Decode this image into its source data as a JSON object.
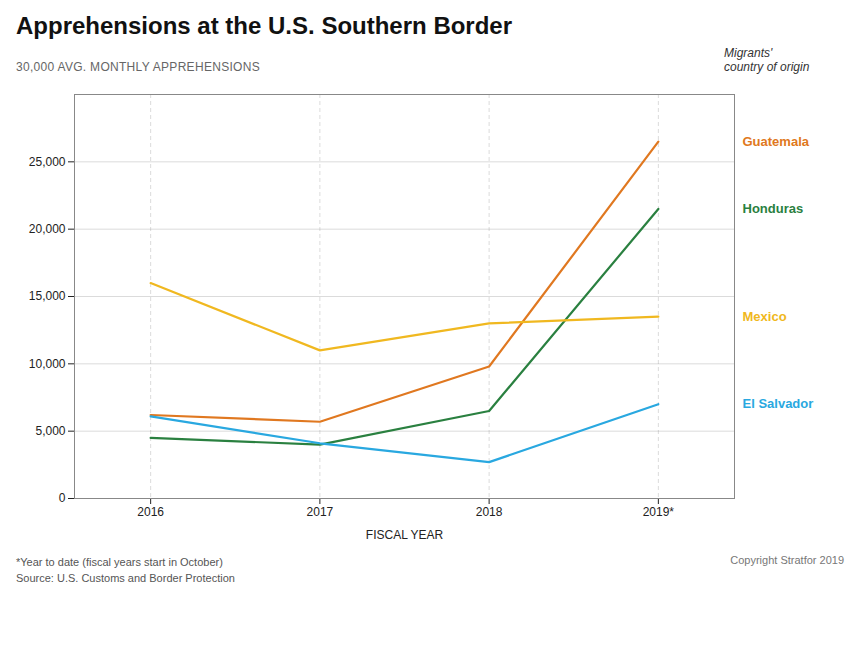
{
  "chart_data": {
    "type": "line",
    "title": "Apprehensions at the U.S. Southern Border",
    "ylabel": "30,000 AVG. MONTHLY APPREHENSIONS",
    "xlabel": "FISCAL YEAR",
    "legend_title": "Migrants'\ncountry of origin",
    "annotations": [
      "*Year to date (fiscal years start in October)",
      "Source: U.S. Customs and Border Protection",
      "Copyright Stratfor 2019"
    ],
    "x": [
      2016,
      2017,
      2018,
      2019
    ],
    "xlim": [
      2015.55,
      2019.45
    ],
    "xticks": [
      2016,
      2017,
      2018,
      {
        "value": 2019,
        "label": "2019*"
      }
    ],
    "series": [
      {
        "name": "Guatemala",
        "color": "#E07820",
        "values": [
          6200,
          5700,
          9800,
          26500
        ]
      },
      {
        "name": "Honduras",
        "color": "#2A8040",
        "values": [
          4500,
          4000,
          6500,
          21500
        ]
      },
      {
        "name": "Mexico",
        "color": "#F0B820",
        "values": [
          16000,
          11000,
          13000,
          13500
        ]
      },
      {
        "name": "El Salvador",
        "color": "#29A8E0",
        "values": [
          6100,
          4100,
          2700,
          7000
        ]
      }
    ],
    "ylim": [
      0,
      30000
    ],
    "yticks": [
      0,
      {
        "value": 5000,
        "label": "5,000"
      },
      {
        "value": 10000,
        "label": "10,000"
      },
      {
        "value": 15000,
        "label": "15,000"
      },
      {
        "value": 20000,
        "label": "20,000"
      },
      {
        "value": 25000,
        "label": "25,000"
      }
    ],
    "grid": true,
    "legend": "right"
  }
}
